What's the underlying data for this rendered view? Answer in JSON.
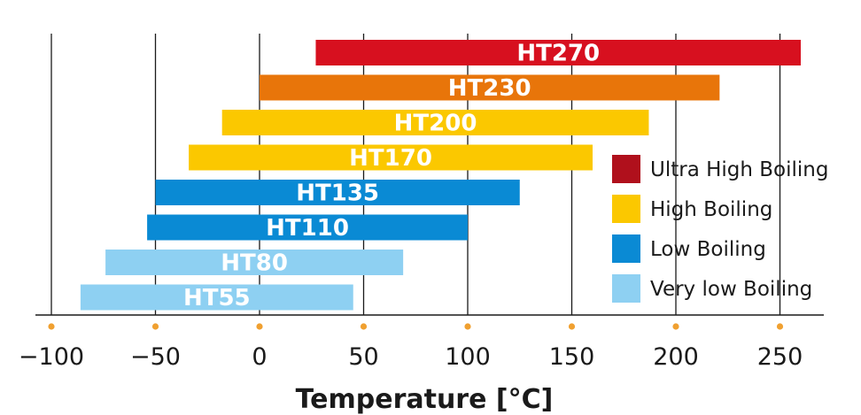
{
  "chart_data": {
    "type": "bar",
    "orientation": "horizontal-range",
    "title": "",
    "xlabel": "Temperature [°C]",
    "ylabel": "",
    "xlim": [
      -100,
      270
    ],
    "xticks": [
      -100,
      -50,
      0,
      50,
      100,
      150,
      200,
      250
    ],
    "xtick_labels": [
      "−100",
      "−50",
      "0",
      "50",
      "100",
      "150",
      "200",
      "250"
    ],
    "grid": "vertical",
    "legend_position": "right",
    "bars": [
      {
        "label": "HT270",
        "start": 27,
        "end": 260,
        "category": "Ultra High Boiling",
        "color": "#d7101f"
      },
      {
        "label": "HT230",
        "start": 0,
        "end": 221,
        "category": "Ultra High Boiling",
        "color": "#e8750a"
      },
      {
        "label": "HT200",
        "start": -18,
        "end": 187,
        "category": "High Boiling",
        "color": "#fbc800"
      },
      {
        "label": "HT170",
        "start": -34,
        "end": 160,
        "category": "High Boiling",
        "color": "#fbc800"
      },
      {
        "label": "HT135",
        "start": -50,
        "end": 125,
        "category": "Low Boiling",
        "color": "#0a8ad4"
      },
      {
        "label": "HT110",
        "start": -54,
        "end": 100,
        "category": "Low Boiling",
        "color": "#0a8ad4"
      },
      {
        "label": "HT80",
        "start": -74,
        "end": 69,
        "category": "Very low Boiling",
        "color": "#8ed0f2"
      },
      {
        "label": "HT55",
        "start": -86,
        "end": 45,
        "category": "Very low Boiling",
        "color": "#8ed0f2"
      }
    ],
    "legend": [
      {
        "label": "Ultra High Boiling",
        "color": "#b0101c"
      },
      {
        "label": "High Boiling",
        "color": "#fbc800"
      },
      {
        "label": "Low Boiling",
        "color": "#0a8ad4"
      },
      {
        "label": "Very low Boiling",
        "color": "#8ed0f2"
      }
    ],
    "tick_marker_color": "#f0a030"
  }
}
